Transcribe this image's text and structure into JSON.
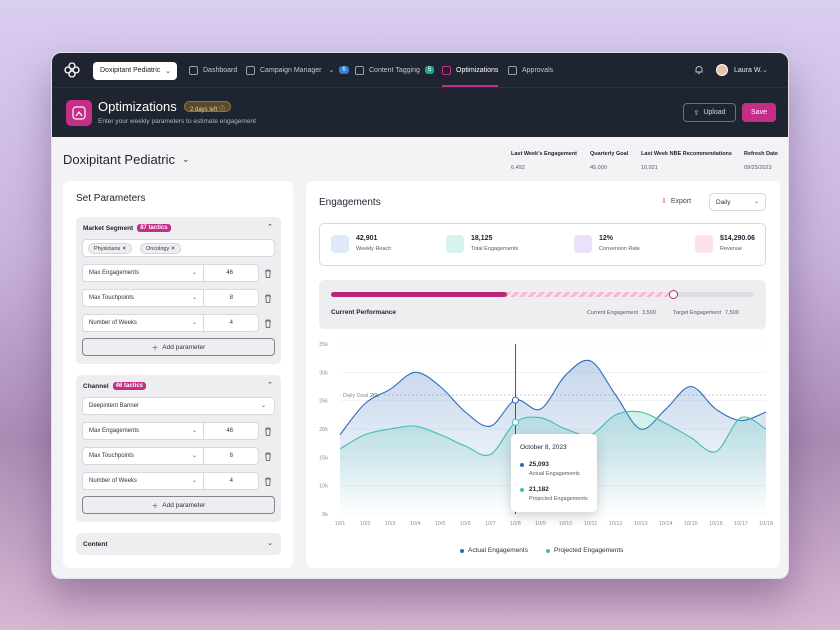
{
  "nav": {
    "brand_select": "Doxipitant Pediatric",
    "items": [
      {
        "label": "Dashboard"
      },
      {
        "label": "Campaign Manager",
        "badge": "6"
      },
      {
        "label": "Content Tagging",
        "badge": "5"
      },
      {
        "label": "Optimizations"
      },
      {
        "label": "Approvals"
      }
    ],
    "user": "Laura W."
  },
  "header": {
    "title": "Optimizations",
    "pill": "2 days left",
    "subtitle": "Enter your weekly parameters to estimate engagement",
    "upload": "Upload",
    "save": "Save"
  },
  "page": {
    "title": "Doxipitant Pediatric",
    "stats": [
      {
        "label": "Last Week's Engagement",
        "value": "6,492"
      },
      {
        "label": "Quarterly Goal",
        "value": "45,000"
      },
      {
        "label": "Last Week NBE Recommendations",
        "value": "10,921"
      },
      {
        "label": "Refresh Date",
        "value": "09/25/2023"
      }
    ]
  },
  "params": {
    "title": "Set Parameters",
    "market": {
      "label": "Market Segment",
      "badge": "87 tactics",
      "chips": [
        "Physicians",
        "Oncology"
      ],
      "rows": [
        {
          "label": "Max Engagements",
          "value": "46"
        },
        {
          "label": "Max Touchpoints",
          "value": "8"
        },
        {
          "label": "Number of Weeks",
          "value": "4"
        }
      ],
      "add": "Add parameter"
    },
    "channel": {
      "label": "Channel",
      "badge": "46 tactics",
      "select": "Deepintent Banner",
      "rows": [
        {
          "label": "Max Engagements",
          "value": "46"
        },
        {
          "label": "Max Touchpoints",
          "value": "8"
        },
        {
          "label": "Number of Weeks",
          "value": "4"
        }
      ],
      "add": "Add parameter"
    },
    "content": {
      "label": "Content"
    }
  },
  "engagements": {
    "title": "Engagements",
    "export": "Export",
    "period": "Daily",
    "kpis": [
      {
        "value": "42,901",
        "label": "Weekly Reach",
        "color": "#dfe9fb",
        "icon": "target-icon"
      },
      {
        "value": "18,125",
        "label": "Total Engagements",
        "color": "#d7f3ef",
        "icon": "antenna-icon"
      },
      {
        "value": "12%",
        "label": "Conversion Rate",
        "color": "#ece1f8",
        "icon": "percent-icon"
      },
      {
        "value": "$14,290.06",
        "label": "Revenue",
        "color": "#fbe1ec",
        "icon": "cash-icon"
      }
    ],
    "performance": {
      "label": "Current Performance",
      "current_label": "Current Engagement",
      "current_value": "3,500",
      "target_label": "Target Engagement",
      "target_value": "7,500",
      "filled_fraction": 0.415,
      "projected_fraction": 0.81
    },
    "tooltip": {
      "date": "October 8, 2023",
      "actual_value": "25,093",
      "actual_label": "Actual Engagements",
      "projected_value": "21,182",
      "projected_label": "Projected Engagements"
    }
  },
  "chart_data": {
    "type": "area",
    "categories": [
      "10/1",
      "10/2",
      "10/3",
      "10/4",
      "10/5",
      "10/6",
      "10/7",
      "10/8",
      "10/9",
      "10/10",
      "10/11",
      "10/12",
      "10/13",
      "10/14",
      "10/15",
      "10/16",
      "10/17",
      "10/18"
    ],
    "yticks": [
      "5k",
      "10k",
      "15k",
      "20k",
      "25k",
      "30k",
      "35k"
    ],
    "ylim": [
      5000,
      35000
    ],
    "daily_goal_label": "Daily Goal",
    "daily_goal_value_label": "26k",
    "daily_goal": 26000,
    "series": [
      {
        "name": "Actual Engagements",
        "color": "#2e6bb8",
        "values": [
          19000,
          24500,
          27000,
          30000,
          27500,
          23000,
          20500,
          25093,
          23500,
          29500,
          32000,
          26000,
          20000,
          23500,
          27500,
          23500,
          21500,
          23000
        ]
      },
      {
        "name": "Projected Engagements",
        "color": "#3fbfae",
        "values": [
          16500,
          19000,
          20000,
          20500,
          19000,
          17000,
          15500,
          21182,
          22000,
          20000,
          19000,
          22500,
          23000,
          21000,
          18500,
          16000,
          22000,
          20000
        ]
      }
    ],
    "highlight_index": 7
  }
}
